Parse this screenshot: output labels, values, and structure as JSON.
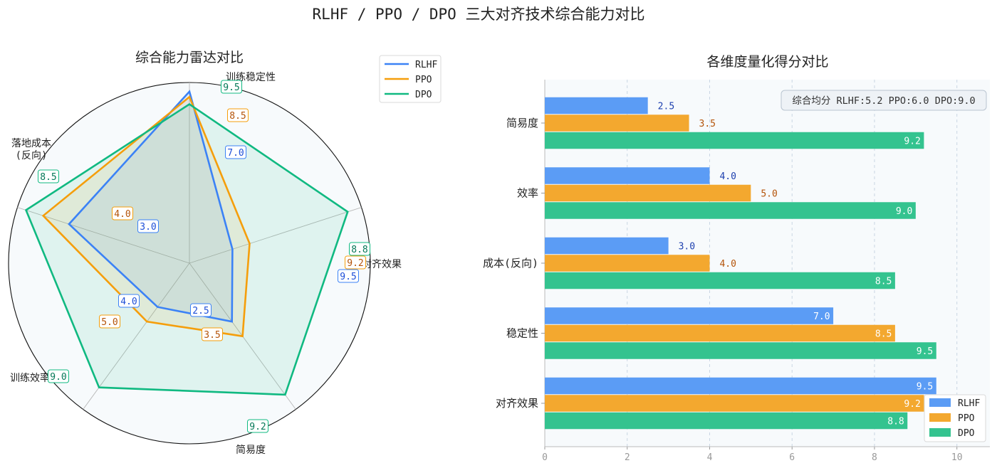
{
  "figure_title": "RLHF / PPO / DPO 三大对齐技术综合能力对比",
  "colors": {
    "RLHF": "#3b82f6",
    "PPO": "#f59e0b",
    "DPO": "#10b981"
  },
  "chart_data": [
    {
      "type": "radar",
      "title": "综合能力雷达对比",
      "axes": [
        "对齐效果",
        "训练稳定性",
        "落地成本\n(反向)",
        "训练效率",
        "简易度"
      ],
      "range": [
        0,
        10
      ],
      "legend_position": "top-right",
      "series": [
        {
          "name": "RLHF",
          "values": [
            9.5,
            7.0,
            3.0,
            4.0,
            2.5
          ]
        },
        {
          "name": "PPO",
          "values": [
            9.2,
            8.5,
            4.0,
            5.0,
            3.5
          ]
        },
        {
          "name": "DPO",
          "values": [
            8.8,
            9.5,
            8.5,
            9.0,
            9.2
          ]
        }
      ]
    },
    {
      "type": "bar",
      "orientation": "horizontal",
      "title": "各维度量化得分对比",
      "categories": [
        "对齐效果",
        "稳定性",
        "成本(反向)",
        "效率",
        "简易度"
      ],
      "xlim": [
        0,
        10.8
      ],
      "xticks": [
        0,
        2,
        4,
        6,
        8,
        10
      ],
      "grid": true,
      "legend_position": "bottom-right",
      "annotation": "综合均分  RLHF:5.2  PPO:6.0  DPO:9.0",
      "series": [
        {
          "name": "RLHF",
          "values": [
            9.5,
            7.0,
            3.0,
            4.0,
            2.5
          ]
        },
        {
          "name": "PPO",
          "values": [
            9.2,
            8.5,
            4.0,
            5.0,
            3.5
          ]
        },
        {
          "name": "DPO",
          "values": [
            8.8,
            9.5,
            8.5,
            9.0,
            9.2
          ]
        }
      ]
    }
  ]
}
